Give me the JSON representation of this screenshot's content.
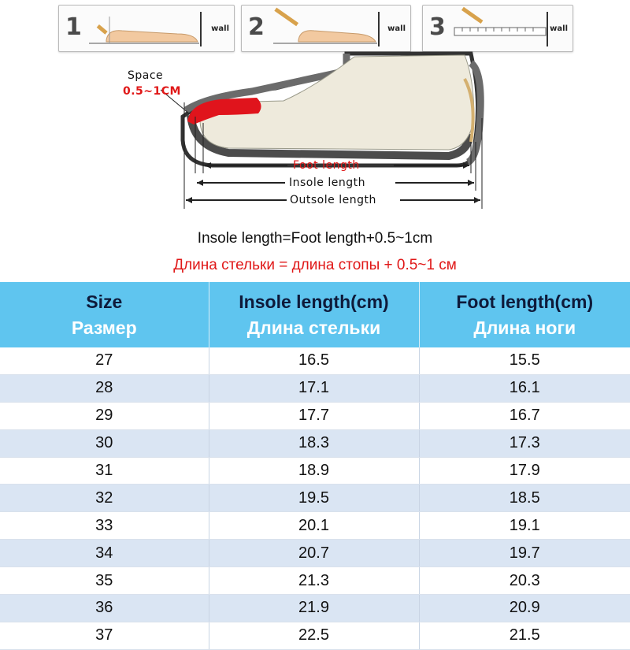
{
  "steps": [
    {
      "number": "1",
      "wall": "wall"
    },
    {
      "number": "2",
      "wall": "wall"
    },
    {
      "number": "3",
      "wall": "wall"
    }
  ],
  "diagram": {
    "space_label": "Space",
    "space_value": "0.5~1CM",
    "foot_length": "Foot length",
    "insole_length": "Insole length",
    "outsole_length": "Outsole length"
  },
  "formula": {
    "en": "Insole length=Foot length+0.5~1cm",
    "ru": "Длина стельки = длина стопы + 0.5~1 см"
  },
  "colors": {
    "header_bg": "#5fc5ef",
    "stripe": "#dae5f3",
    "accent_red": "#e01818"
  },
  "table": {
    "headers": [
      {
        "en": "Size",
        "ru": "Размер"
      },
      {
        "en": "Insole length(cm)",
        "ru": "Длина стельки"
      },
      {
        "en": "Foot length(cm)",
        "ru": "Длина ноги"
      }
    ],
    "rows": [
      [
        "27",
        "16.5",
        "15.5"
      ],
      [
        "28",
        "17.1",
        "16.1"
      ],
      [
        "29",
        "17.7",
        "16.7"
      ],
      [
        "30",
        "18.3",
        "17.3"
      ],
      [
        "31",
        "18.9",
        "17.9"
      ],
      [
        "32",
        "19.5",
        "18.5"
      ],
      [
        "33",
        "20.1",
        "19.1"
      ],
      [
        "34",
        "20.7",
        "19.7"
      ],
      [
        "35",
        "21.3",
        "20.3"
      ],
      [
        "36",
        "21.9",
        "20.9"
      ],
      [
        "37",
        "22.5",
        "21.5"
      ]
    ]
  }
}
